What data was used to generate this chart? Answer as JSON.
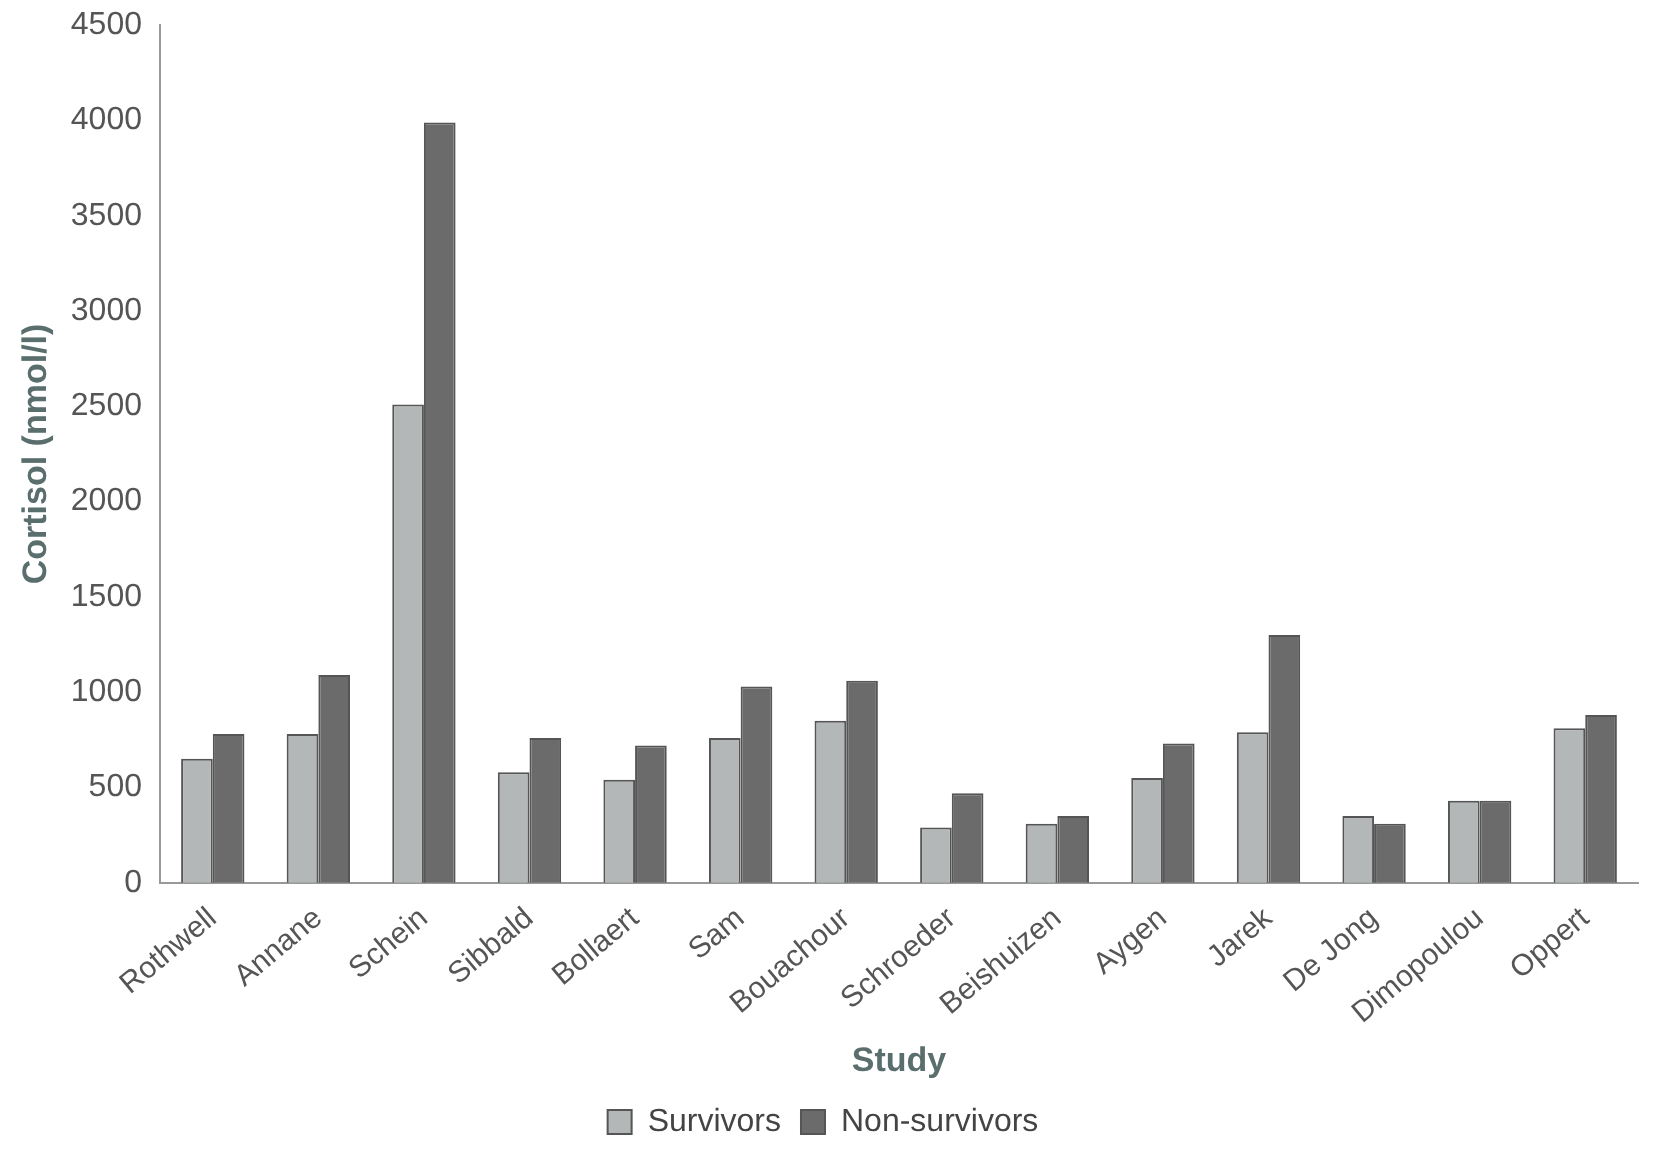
{
  "chart_data": {
    "type": "bar",
    "xlabel": "Study",
    "ylabel": "Cortisol (nmol/l)",
    "categories": [
      "Rothwell",
      "Annane",
      "Schein",
      "Sibbald",
      "Bollaert",
      "Sam",
      "Bouachour",
      "Schroeder",
      "Beishuizen",
      "Aygen",
      "Jarek",
      "De Jong",
      "Dimopoulou",
      "Oppert"
    ],
    "series": [
      {
        "name": "Survivors",
        "color": "#b3b7b7",
        "values": [
          650,
          780,
          2510,
          580,
          540,
          760,
          850,
          290,
          310,
          550,
          790,
          350,
          430,
          810
        ]
      },
      {
        "name": "Non-survivors",
        "color": "#6b6b6b",
        "values": [
          780,
          1090,
          3990,
          760,
          720,
          1030,
          1060,
          470,
          350,
          730,
          1300,
          310,
          430,
          880
        ]
      }
    ],
    "ylim": [
      0,
      4500
    ],
    "yticks": [
      0,
      500,
      1000,
      1500,
      2000,
      2500,
      3000,
      3500,
      4000,
      4500
    ],
    "grid": false,
    "legend": "bottom"
  }
}
